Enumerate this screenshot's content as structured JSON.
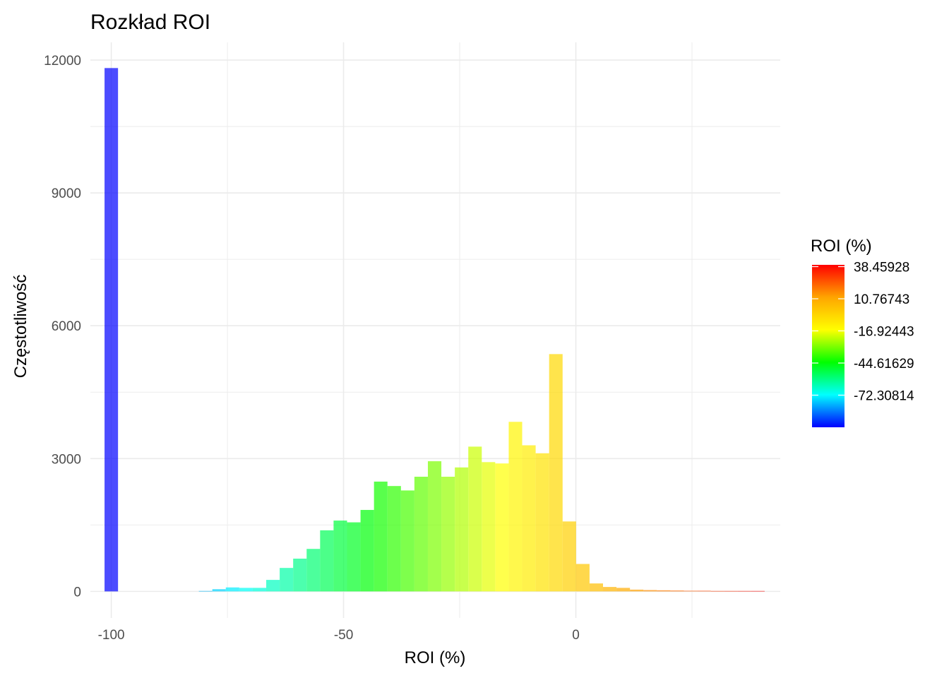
{
  "chart_data": {
    "type": "bar",
    "title": "Rozkład ROI",
    "xlabel": "ROI (%)",
    "ylabel": "Częstotliwość",
    "xlim": [
      -104.5,
      44
    ],
    "ylim": [
      -600,
      12400
    ],
    "x_ticks": [
      -100,
      -50,
      0
    ],
    "x_tick_labels": [
      "-100",
      "-50",
      "0"
    ],
    "y_ticks": [
      0,
      3000,
      6000,
      9000,
      12000
    ],
    "y_tick_labels": [
      "0",
      "3000",
      "6000",
      "9000",
      "12000"
    ],
    "grid": true,
    "bin_width": 2.9,
    "bin_centers": [
      -100.0,
      -97.1,
      -94.2,
      -91.3,
      -88.4,
      -85.5,
      -82.6,
      -79.7,
      -76.8,
      -73.9,
      -71.0,
      -68.1,
      -65.2,
      -62.3,
      -59.4,
      -56.5,
      -53.6,
      -50.7,
      -47.8,
      -44.9,
      -42.0,
      -39.1,
      -36.2,
      -33.3,
      -30.4,
      -27.5,
      -24.6,
      -21.7,
      -18.8,
      -15.9,
      -13.0,
      -10.1,
      -7.2,
      -4.3,
      -1.4,
      1.5,
      4.4,
      7.3,
      10.2,
      13.1,
      16.0,
      18.9,
      21.8,
      24.7,
      27.6,
      30.5,
      33.4,
      36.3,
      39.2
    ],
    "values": [
      11820,
      0,
      0,
      0,
      0,
      0,
      0,
      10,
      50,
      90,
      80,
      80,
      260,
      530,
      740,
      960,
      1380,
      1600,
      1560,
      1840,
      2480,
      2380,
      2280,
      2590,
      2940,
      2590,
      2800,
      3270,
      2920,
      2890,
      3830,
      3300,
      3120,
      5360,
      1580,
      620,
      180,
      100,
      80,
      40,
      30,
      25,
      20,
      15,
      15,
      10,
      10,
      10,
      10
    ],
    "legend": {
      "title": "ROI (%)",
      "placement": "right",
      "type": "colorbar",
      "labels": [
        "38.45928",
        "10.76743",
        "-16.92443",
        "-44.61629",
        "-72.30814"
      ],
      "label_values": [
        38.45928,
        10.76743,
        -16.92443,
        -44.61629,
        -72.30814
      ],
      "range": [
        -100,
        40
      ]
    },
    "colors": {
      "low": "#0000ff",
      "stops": [
        "#0000ff",
        "#00ffff",
        "#00ff00",
        "#ffff00",
        "#ffa500",
        "#ff0000"
      ],
      "grid": "#ebebeb",
      "bar_opacity": 0.7
    }
  }
}
